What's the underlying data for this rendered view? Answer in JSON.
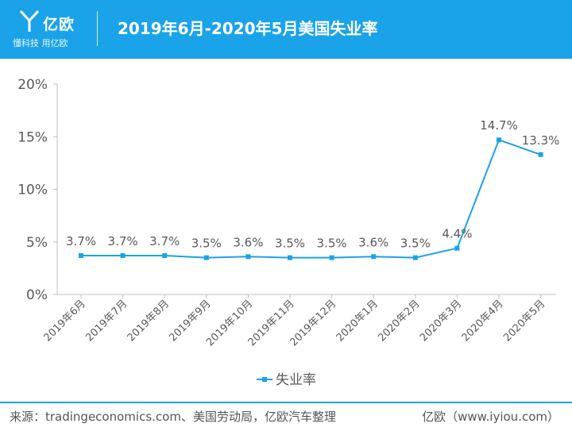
{
  "header": {
    "logo_name": "亿欧",
    "logo_slogan": "懂科技 用亿欧",
    "title": "2019年6月-2020年5月美国失业率"
  },
  "colors": {
    "header_bg": "#1aa3e8",
    "series": "#1aa3e8",
    "axis": "#bfbfbf",
    "text": "#595959"
  },
  "chart_data": {
    "type": "line",
    "title": "2019年6月-2020年5月美国失业率",
    "categories": [
      "2019年6月",
      "2019年7月",
      "2019年8月",
      "2019年9月",
      "2019年10月",
      "2019年11月",
      "2019年12月",
      "2020年1月",
      "2020年2月",
      "2020年3月",
      "2020年4月",
      "2020年5月"
    ],
    "series": [
      {
        "name": "失业率",
        "values": [
          3.7,
          3.7,
          3.7,
          3.5,
          3.6,
          3.5,
          3.5,
          3.6,
          3.5,
          4.4,
          14.7,
          13.3
        ]
      }
    ],
    "data_labels": [
      "3.7%",
      "3.7%",
      "3.7%",
      "3.5%",
      "3.6%",
      "3.5%",
      "3.5%",
      "3.6%",
      "3.5%",
      "4.4%",
      "14.7%",
      "13.3%"
    ],
    "y_ticks": [
      "0%",
      "5%",
      "10%",
      "15%",
      "20%"
    ],
    "ylim": [
      0,
      20
    ],
    "grid": false,
    "legend": "bottom"
  },
  "footer": {
    "source": "来源：tradingeconomics.com、美国劳动局，亿欧汽车整理",
    "brand_url": "亿欧（www.iyiou.com）"
  }
}
